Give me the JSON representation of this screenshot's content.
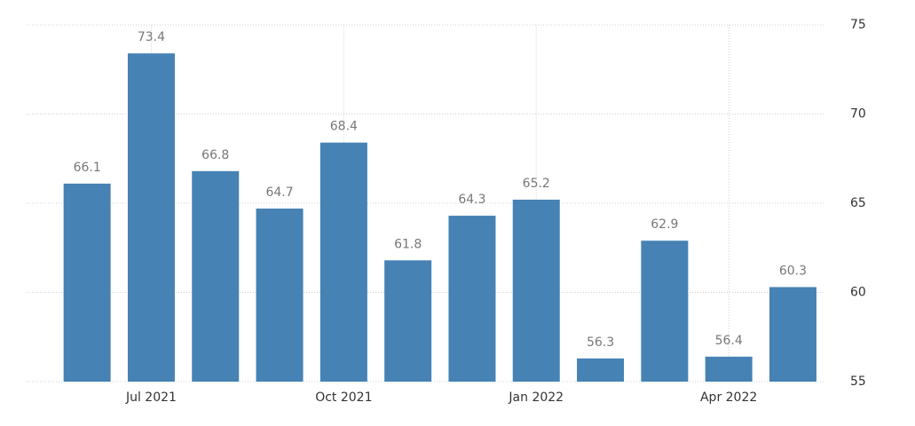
{
  "chart_data": {
    "type": "bar",
    "categories": [
      null,
      "Jul 2021",
      null,
      null,
      "Oct 2021",
      null,
      null,
      "Jan 2022",
      null,
      null,
      "Apr 2022",
      null
    ],
    "values": [
      66.1,
      73.4,
      66.8,
      64.7,
      68.4,
      61.8,
      64.3,
      65.2,
      56.3,
      62.9,
      56.4,
      60.3
    ],
    "color": "#4682b4",
    "ylim": [
      55,
      75
    ],
    "yticks": [
      55,
      60,
      65,
      70,
      75
    ],
    "grid": true
  }
}
